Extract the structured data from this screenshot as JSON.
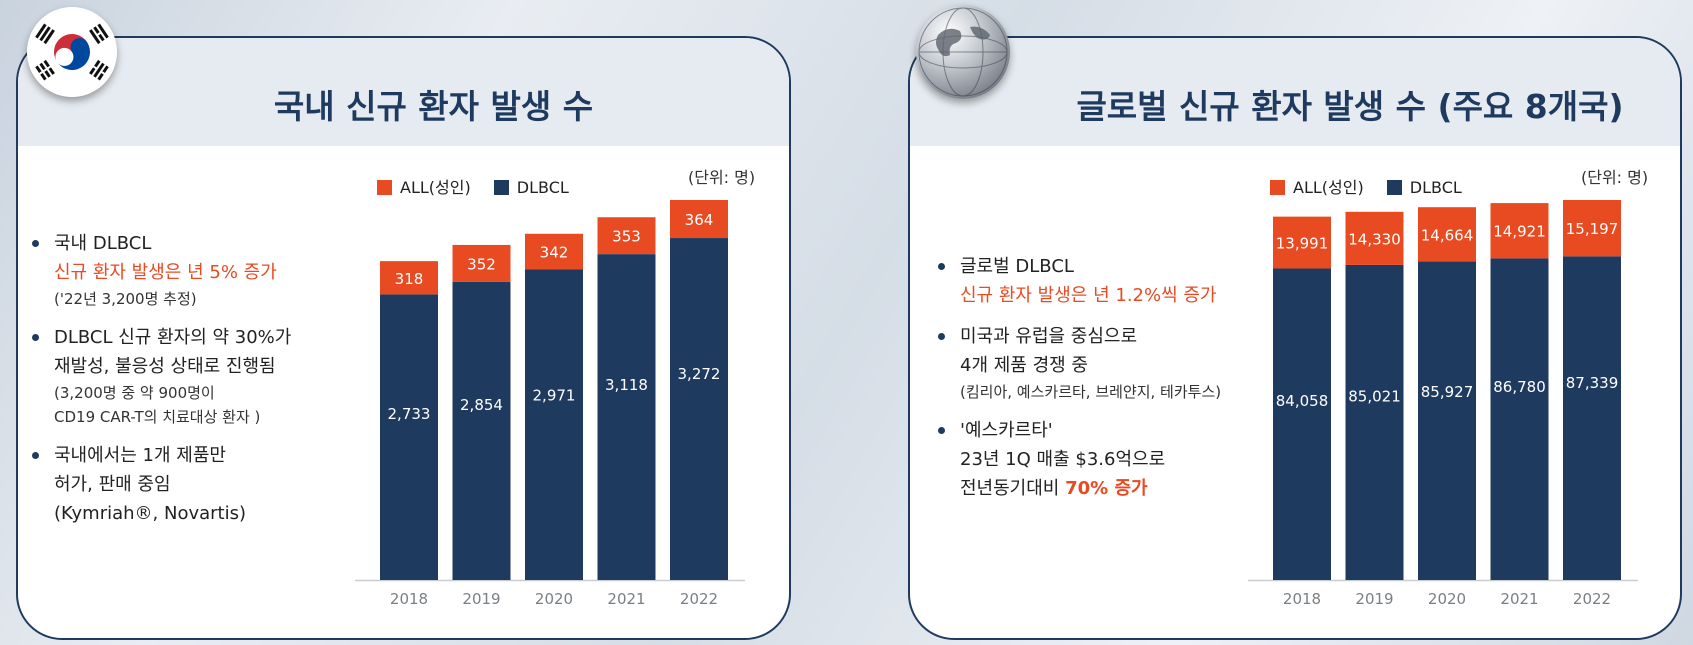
{
  "colors": {
    "all": "#e84a22",
    "dlbcl": "#1f3a5f",
    "axis": "#c8cdd3",
    "tick": "#7a7f86"
  },
  "korea": {
    "title": "국내 신규 환자 발생 수",
    "flag_icon": "korea-flag-icon",
    "bullets": [
      {
        "lines": [
          {
            "text": "국내 DLBCL",
            "style": "normal"
          },
          {
            "text": "신규 환자 발생은 년 5% 증가",
            "style": "red"
          },
          {
            "text": "('22년 3,200명 추정)",
            "style": "small"
          }
        ]
      },
      {
        "lines": [
          {
            "text": "DLBCL 신규 환자의 약 30%가",
            "style": "normal"
          },
          {
            "text": "재발성, 불응성 상태로 진행됨",
            "style": "normal"
          },
          {
            "text": "(3,200명 중 약 900명이",
            "style": "small"
          },
          {
            "text": "CD19 CAR-T의 치료대상 환자 )",
            "style": "small"
          }
        ]
      },
      {
        "lines": [
          {
            "text": "국내에서는 1개 제품만",
            "style": "normal"
          },
          {
            "text": "허가, 판매 중임",
            "style": "normal"
          },
          {
            "text": "(Kymriah®, Novartis)",
            "style": "normal"
          }
        ]
      }
    ]
  },
  "global": {
    "title": "글로벌 신규 환자 발생 수 (주요 8개국)",
    "globe_icon": "globe-icon",
    "bullets": [
      {
        "lines": [
          {
            "text": "글로벌 DLBCL",
            "style": "normal"
          },
          {
            "text": "신규 환자 발생은 년 1.2%씩 증가",
            "style": "red"
          }
        ]
      },
      {
        "lines": [
          {
            "text": "미국과 유럽을 중심으로",
            "style": "normal"
          },
          {
            "text": "4개 제품 경쟁 중",
            "style": "normal"
          },
          {
            "text": "(킴리아, 예스카르타, 브레얀지, 테카투스)",
            "style": "small"
          }
        ]
      },
      {
        "lines": [
          {
            "text": "'예스카르타'",
            "style": "normal"
          },
          {
            "text": "23년 1Q 매출 $3.6억으로",
            "style": "normal"
          },
          {
            "parts": [
              {
                "text": "전년동기대비 ",
                "style": "normal"
              },
              {
                "text": "70% 증가",
                "style": "redbold"
              }
            ]
          }
        ]
      }
    ]
  },
  "chart_data": [
    {
      "type": "bar",
      "stacked": true,
      "unit_label": "(단위: 명)",
      "categories": [
        "2018",
        "2019",
        "2020",
        "2021",
        "2022"
      ],
      "series": [
        {
          "name": "DLBCL",
          "values": [
            2733,
            2854,
            2971,
            3118,
            3272
          ],
          "labels": [
            "2,733",
            "2,854",
            "2,971",
            "3,118",
            "3,272"
          ]
        },
        {
          "name": "ALL(성인)",
          "values": [
            318,
            352,
            342,
            353,
            364
          ],
          "labels": [
            "318",
            "352",
            "342",
            "353",
            "364"
          ]
        }
      ],
      "ylim": [
        0,
        3636
      ]
    },
    {
      "type": "bar",
      "stacked": true,
      "unit_label": "(단위: 명)",
      "categories": [
        "2018",
        "2019",
        "2020",
        "2021",
        "2022"
      ],
      "series": [
        {
          "name": "DLBCL",
          "values": [
            84058,
            85021,
            85927,
            86780,
            87339
          ],
          "labels": [
            "84,058",
            "85,021",
            "85,927",
            "86,780",
            "87,339"
          ]
        },
        {
          "name": "ALL(성인)",
          "values": [
            13991,
            14330,
            14664,
            14921,
            15197
          ],
          "labels": [
            "13,991",
            "14,330",
            "14,664",
            "14,921",
            "15,197"
          ]
        }
      ],
      "ylim": [
        0,
        102536
      ]
    }
  ]
}
